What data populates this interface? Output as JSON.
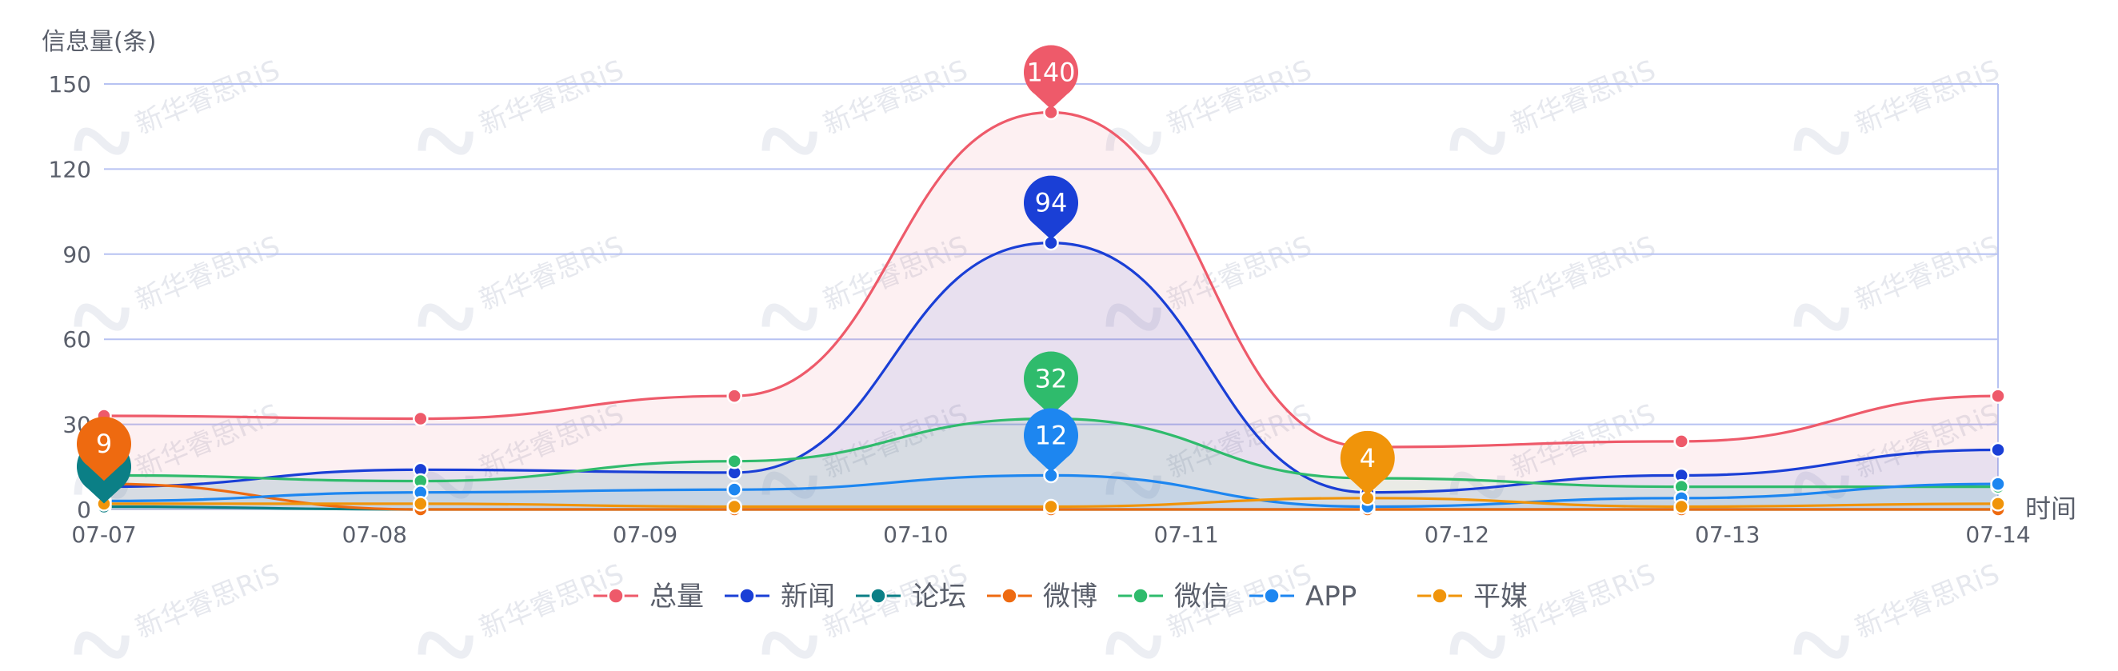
{
  "watermark": "新华睿思RiS",
  "chart_data": {
    "type": "line",
    "smooth": true,
    "ylabel": "信息量(条)",
    "xlabel": "时间",
    "x": [
      "07-07",
      "07-08",
      "07-09",
      "07-10",
      "07-11",
      "07-12",
      "07-13",
      "07-14"
    ],
    "ylim": [
      0,
      150
    ],
    "yticks": [
      0,
      30,
      60,
      90,
      120,
      150
    ],
    "grid": true,
    "legend_position": "bottom-center",
    "series": [
      {
        "name": "总量",
        "color": "#ee5a6a",
        "area": true,
        "values": [
          [
            0,
            33
          ],
          [
            1.17,
            32
          ],
          [
            2.33,
            40
          ],
          [
            3.5,
            140
          ],
          [
            4.67,
            22
          ],
          [
            5.83,
            24
          ],
          [
            7,
            40
          ]
        ],
        "pin": {
          "x": 3.5,
          "value": "140"
        }
      },
      {
        "name": "新闻",
        "color": "#1a3fd6",
        "area": true,
        "values": [
          [
            0,
            8
          ],
          [
            1.17,
            14
          ],
          [
            2.33,
            13
          ],
          [
            3.5,
            94
          ],
          [
            4.67,
            6
          ],
          [
            5.83,
            12
          ],
          [
            7,
            21
          ]
        ],
        "pin": {
          "x": 3.5,
          "value": "94"
        }
      },
      {
        "name": "论坛",
        "color": "#0b7f86",
        "area": false,
        "values": [
          [
            0,
            1
          ],
          [
            1.17,
            0
          ],
          [
            2.33,
            0
          ],
          [
            3.5,
            0
          ],
          [
            4.67,
            0
          ],
          [
            5.83,
            0
          ],
          [
            7,
            0
          ]
        ],
        "pin": {
          "x": 0,
          "value": ""
        }
      },
      {
        "name": "微博",
        "color": "#ee6a10",
        "area": false,
        "values": [
          [
            0,
            9
          ],
          [
            1.17,
            0
          ],
          [
            2.33,
            0
          ],
          [
            3.5,
            0
          ],
          [
            4.67,
            0
          ],
          [
            5.83,
            0
          ],
          [
            7,
            0
          ]
        ],
        "pin": {
          "x": 0,
          "value": "9"
        }
      },
      {
        "name": "微信",
        "color": "#2fbb6c",
        "area": true,
        "values": [
          [
            0,
            12
          ],
          [
            1.17,
            10
          ],
          [
            2.33,
            17
          ],
          [
            3.5,
            32
          ],
          [
            4.67,
            11
          ],
          [
            5.83,
            8
          ],
          [
            7,
            8
          ]
        ],
        "pin": {
          "x": 3.5,
          "value": "32"
        }
      },
      {
        "name": "APP",
        "color": "#1d86f0",
        "area": true,
        "values": [
          [
            0,
            3
          ],
          [
            1.17,
            6
          ],
          [
            2.33,
            7
          ],
          [
            3.5,
            12
          ],
          [
            4.67,
            1
          ],
          [
            5.83,
            4
          ],
          [
            7,
            9
          ]
        ],
        "pin": {
          "x": 3.5,
          "value": "12"
        }
      },
      {
        "name": "平媒",
        "color": "#f0940a",
        "area": false,
        "values": [
          [
            0,
            2
          ],
          [
            1.17,
            2
          ],
          [
            2.33,
            1
          ],
          [
            3.5,
            1
          ],
          [
            4.67,
            4
          ],
          [
            5.83,
            1
          ],
          [
            7,
            2
          ]
        ],
        "pin": {
          "x": 4.67,
          "value": "4"
        }
      }
    ]
  }
}
